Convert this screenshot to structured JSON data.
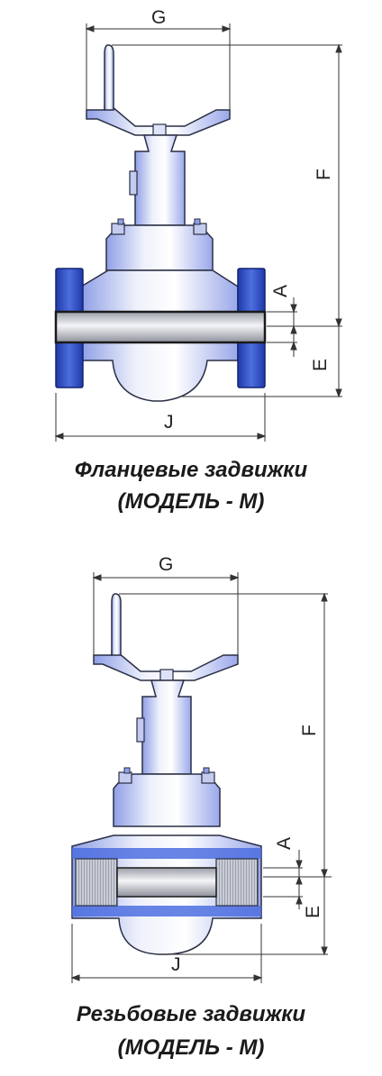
{
  "flanged": {
    "labels": {
      "G": "G",
      "F": "F",
      "A": "A",
      "E": "E",
      "J": "J"
    },
    "caption_line1": "Фланцевые задвижки",
    "caption_line2": "(МОДЕЛЬ - М)"
  },
  "threaded": {
    "labels": {
      "G": "G",
      "F": "F",
      "A": "A",
      "E": "E",
      "J": "J"
    },
    "caption_line1": "Резьбовые задвижки",
    "caption_line2": "(МОДЕЛЬ - М)"
  },
  "colors": {
    "body_light": "#eef1fb",
    "body_mid": "#b9c3ef",
    "flange_blue": "#3b5bd0",
    "flange_dark": "#1f3aa8",
    "pipe_grey": "#c9ccd3",
    "outline": "#2a2f45"
  }
}
